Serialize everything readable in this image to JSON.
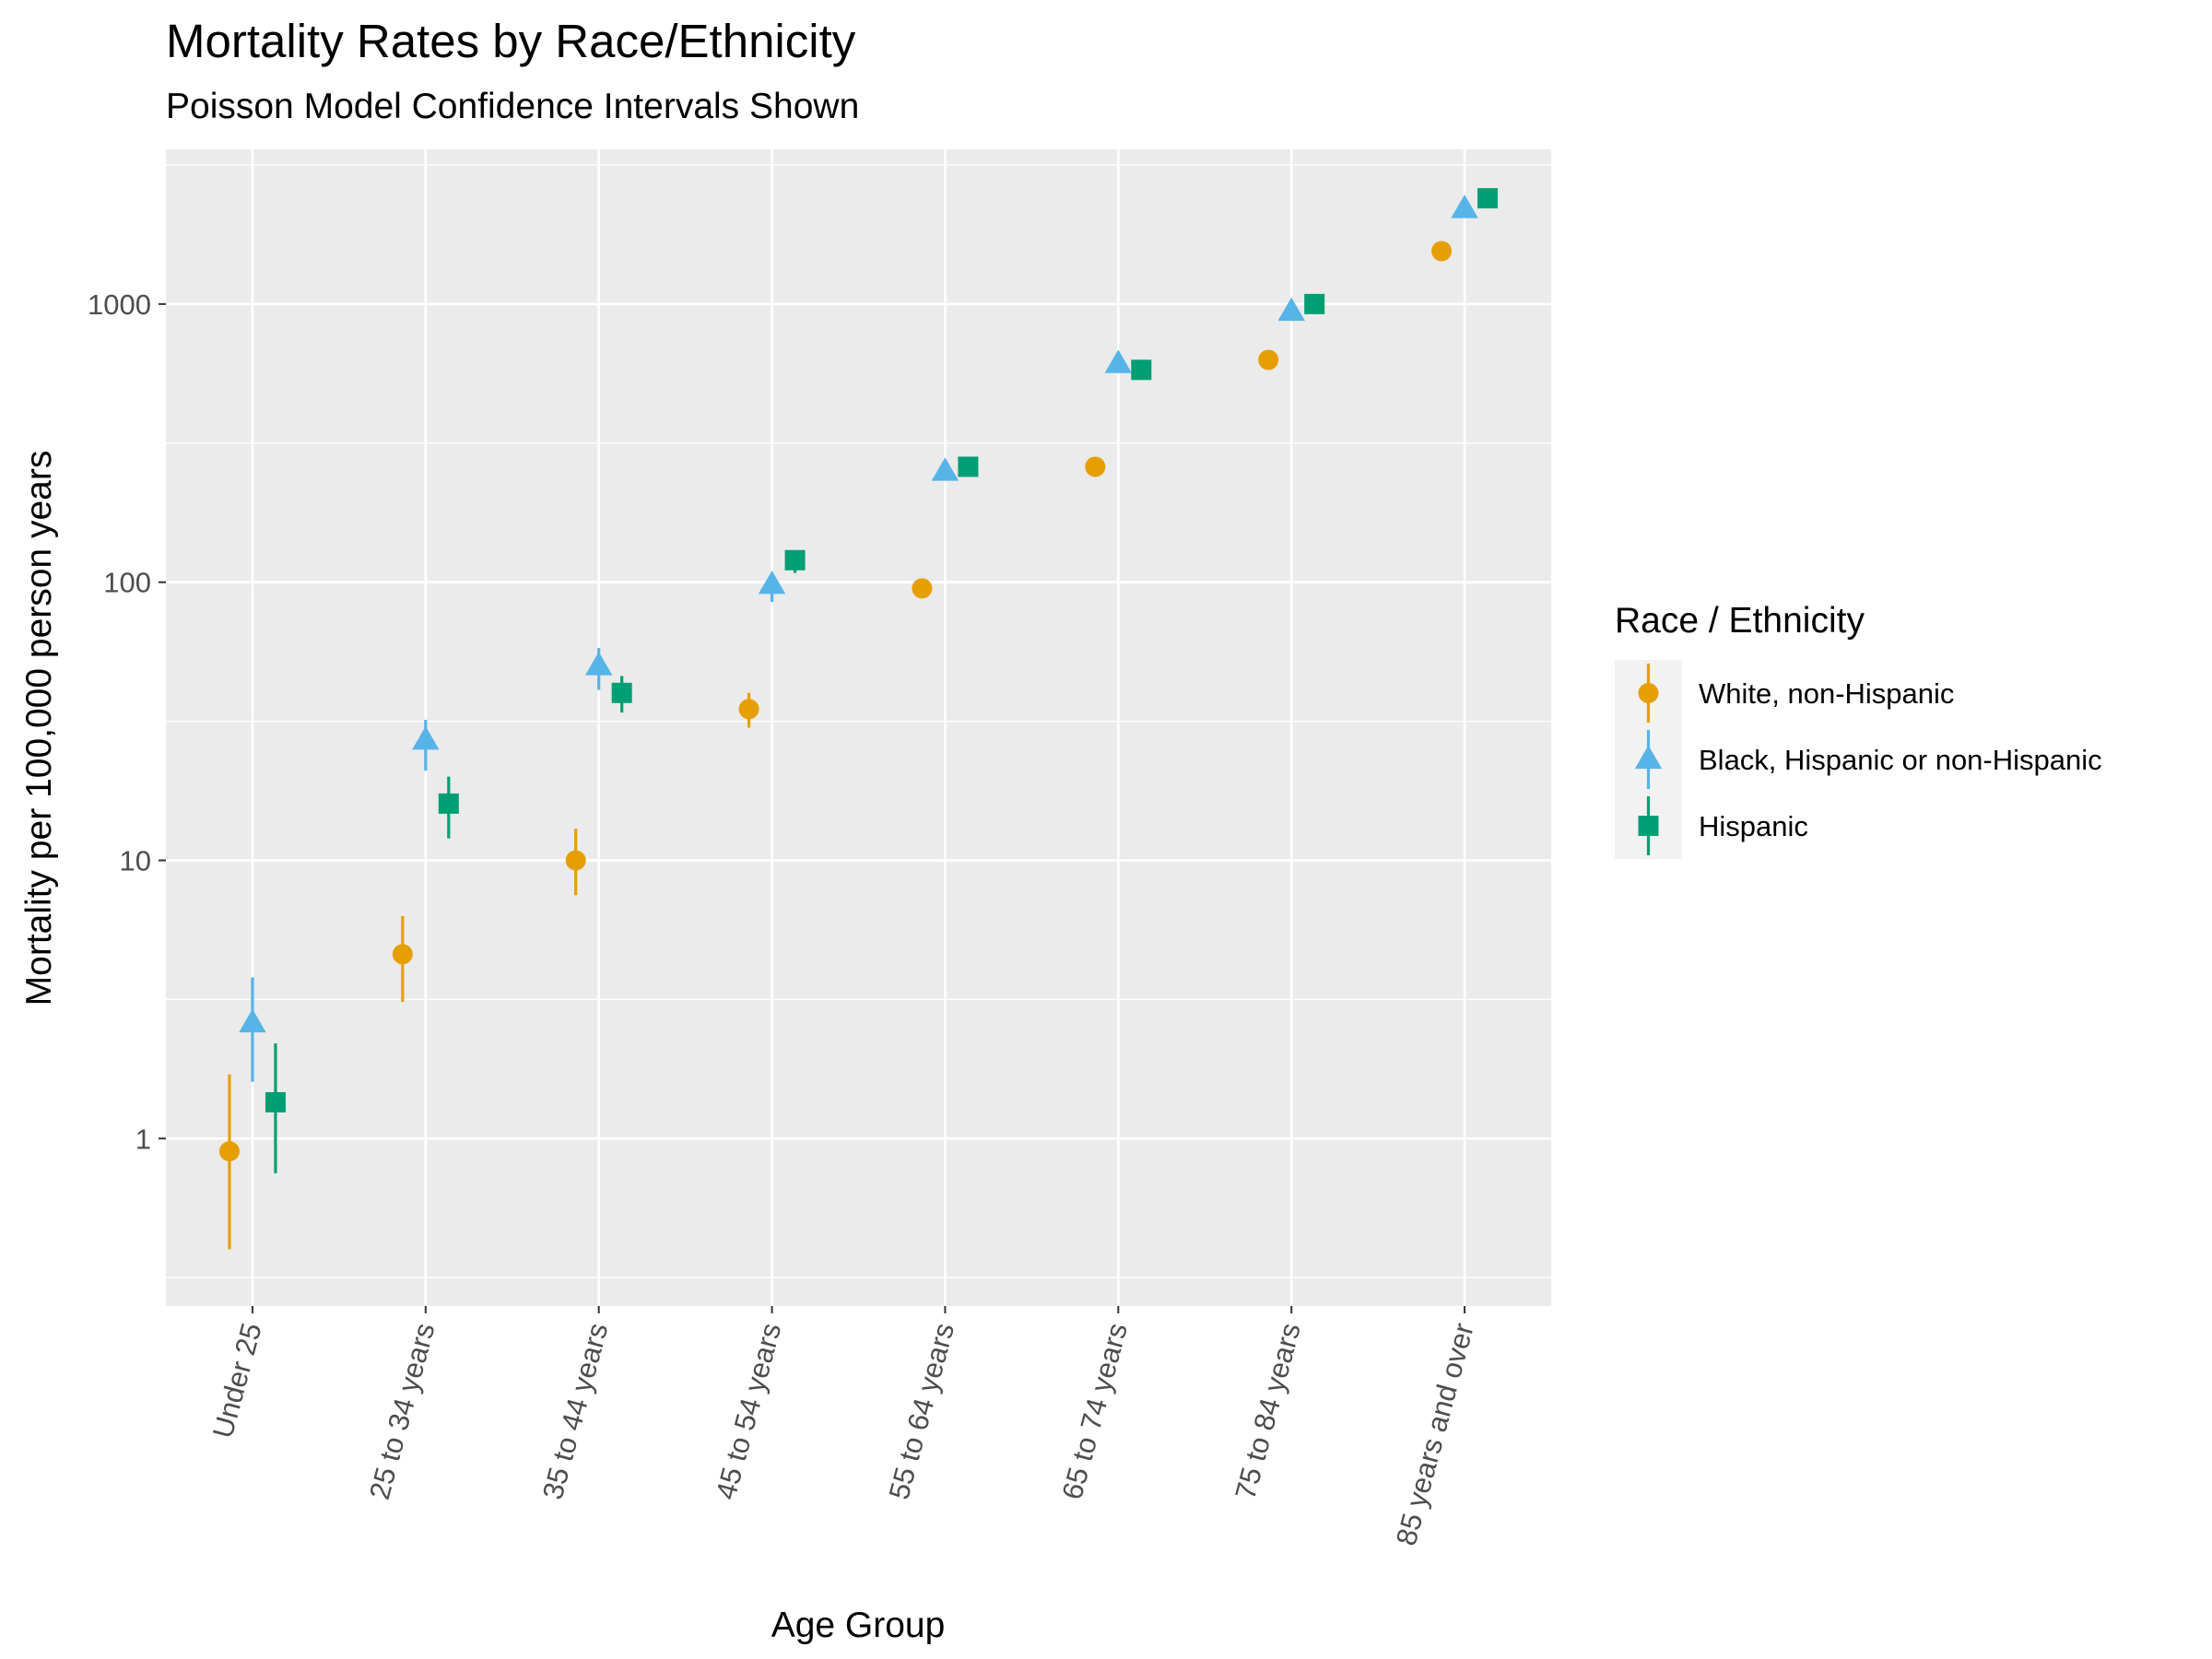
{
  "chart_data": {
    "type": "scatter",
    "title": "Mortality Rates by Race/Ethnicity",
    "subtitle": "Poisson Model Confidence Intervals Shown",
    "xlabel": "Age Group",
    "ylabel": "Mortality per 100,000 person years",
    "y_scale": "log10",
    "ylim": [
      0.25,
      3600
    ],
    "y_ticks": [
      1,
      10,
      100,
      1000
    ],
    "y_tick_labels": [
      "1",
      "10",
      "100",
      "1000"
    ],
    "grid": true,
    "categories": [
      "Under 25",
      "25 to 34 years",
      "35 to 44 years",
      "45 to 54 years",
      "55 to 64 years",
      "65 to 74 years",
      "75 to 84 years",
      "85 years and over"
    ],
    "legend": {
      "title": "Race / Ethnicity",
      "position": "right"
    },
    "series": [
      {
        "name": "White, non-Hispanic",
        "color": "#E69F00",
        "shape": "circle",
        "values": [
          0.9,
          4.6,
          10,
          35,
          95,
          260,
          630,
          1550
        ],
        "lower": [
          0.4,
          3.1,
          7.5,
          30,
          90,
          250,
          610,
          1510
        ],
        "upper": [
          1.7,
          6.3,
          13,
          40,
          100,
          270,
          650,
          1590
        ]
      },
      {
        "name": "Black, Hispanic or non-Hispanic",
        "color": "#56B4E9",
        "shape": "triangle",
        "values": [
          2.6,
          27,
          50,
          98,
          250,
          610,
          940,
          2200
        ],
        "lower": [
          1.6,
          21,
          41,
          85,
          235,
          585,
          905,
          2100
        ],
        "upper": [
          3.8,
          32,
          58,
          108,
          265,
          635,
          975,
          2300
        ]
      },
      {
        "name": "Hispanic",
        "color": "#009E73",
        "shape": "square",
        "values": [
          1.35,
          16,
          40,
          120,
          260,
          580,
          1000,
          2400
        ],
        "lower": [
          0.75,
          12,
          34,
          108,
          245,
          555,
          965,
          2250
        ],
        "upper": [
          2.2,
          20,
          46,
          130,
          275,
          605,
          1035,
          2550
        ]
      }
    ]
  }
}
